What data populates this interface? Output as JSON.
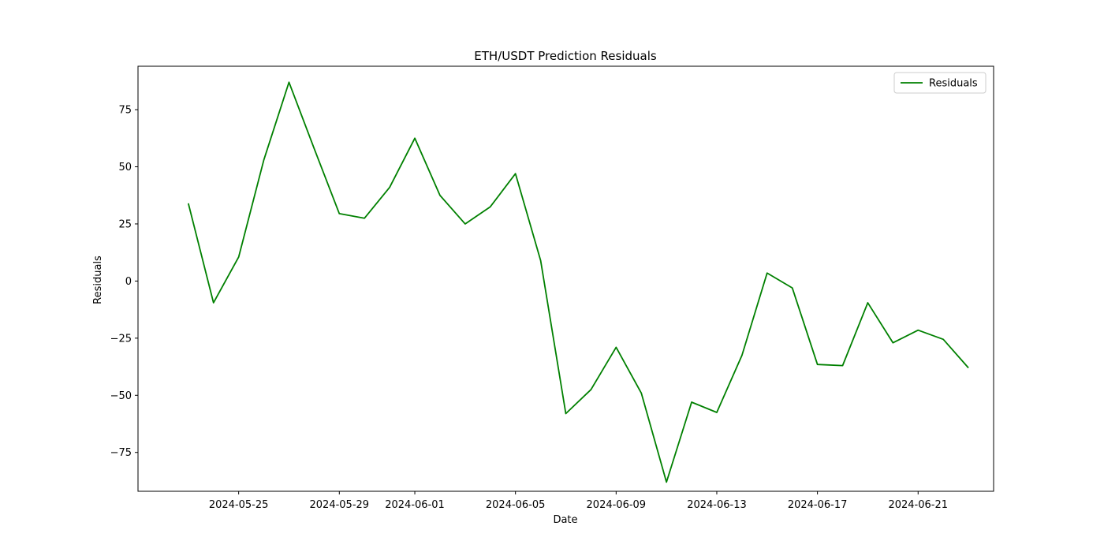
{
  "chart_data": {
    "type": "line",
    "title": "ETH/USDT Prediction Residuals",
    "xlabel": "Date",
    "ylabel": "Residuals",
    "ylim": [
      -92,
      94
    ],
    "xlim": [
      "2024-05-21",
      "2024-06-24"
    ],
    "yticks": [
      -75,
      -50,
      -25,
      0,
      25,
      50,
      75
    ],
    "xticks": [
      "2024-05-25",
      "2024-05-29",
      "2024-06-01",
      "2024-06-05",
      "2024-06-09",
      "2024-06-13",
      "2024-06-17",
      "2024-06-21"
    ],
    "grid": false,
    "legend_position": "top-right",
    "series": [
      {
        "name": "Residuals",
        "color": "#008000",
        "x": [
          "2024-05-23",
          "2024-05-24",
          "2024-05-25",
          "2024-05-26",
          "2024-05-27",
          "2024-05-28",
          "2024-05-29",
          "2024-05-30",
          "2024-05-31",
          "2024-06-01",
          "2024-06-02",
          "2024-06-03",
          "2024-06-04",
          "2024-06-05",
          "2024-06-06",
          "2024-06-07",
          "2024-06-08",
          "2024-06-09",
          "2024-06-10",
          "2024-06-11",
          "2024-06-12",
          "2024-06-13",
          "2024-06-14",
          "2024-06-15",
          "2024-06-16",
          "2024-06-17",
          "2024-06-18",
          "2024-06-19",
          "2024-06-20",
          "2024-06-21",
          "2024-06-22",
          "2024-06-23"
        ],
        "values": [
          34,
          -9.5,
          10.5,
          53,
          87,
          58,
          29.5,
          27.5,
          41,
          62.5,
          37.5,
          25,
          32.5,
          47,
          9,
          -58,
          -47.5,
          -29,
          -49,
          -88,
          -53,
          -57.5,
          -32.5,
          3.5,
          -3,
          -36.5,
          -37,
          -9.5,
          -27,
          -21.5,
          -25.5,
          -38
        ]
      }
    ]
  }
}
